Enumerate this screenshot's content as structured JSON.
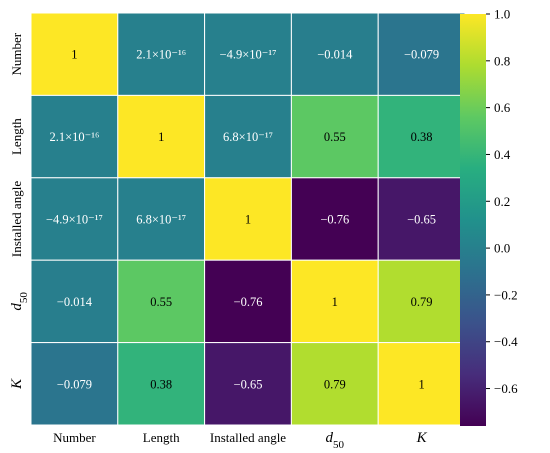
{
  "chart_data": {
    "type": "heatmap",
    "row_labels": [
      "Number",
      "Length",
      "Installed angle",
      "d50",
      "K"
    ],
    "col_labels": [
      "Number",
      "Length",
      "Installed angle",
      "d50",
      "K"
    ],
    "values": [
      [
        1,
        2.1e-16,
        -4.9e-17,
        -0.014,
        -0.079
      ],
      [
        2.1e-16,
        1,
        6.8e-17,
        0.55,
        0.38
      ],
      [
        -4.9e-17,
        6.8e-17,
        1,
        -0.76,
        -0.65
      ],
      [
        -0.014,
        0.55,
        -0.76,
        1,
        0.79
      ],
      [
        -0.079,
        0.38,
        -0.65,
        0.79,
        1
      ]
    ],
    "annotations": [
      [
        "1",
        "2.1×10⁻¹⁶",
        "−4.9×10⁻¹⁷",
        "−0.014",
        "−0.079"
      ],
      [
        "2.1×10⁻¹⁶",
        "1",
        "6.8×10⁻¹⁷",
        "0.55",
        "0.38"
      ],
      [
        "−4.9×10⁻¹⁷",
        "6.8×10⁻¹⁷",
        "1",
        "−0.76",
        "−0.65"
      ],
      [
        "−0.014",
        "0.55",
        "−0.76",
        "1",
        "0.79"
      ],
      [
        "−0.079",
        "0.38",
        "−0.65",
        "0.79",
        "1"
      ]
    ],
    "colorbar": {
      "colormap": "viridis",
      "range": [
        -0.76,
        1.0
      ],
      "ticks": [
        1.0,
        0.8,
        0.6,
        0.4,
        0.2,
        0.0,
        -0.2,
        -0.4,
        -0.6
      ],
      "tick_labels": [
        "1.0",
        "0.8",
        "0.6",
        "0.4",
        "0.2",
        "0.0",
        "−0.2",
        "−0.4",
        "−0.6"
      ]
    },
    "title": "",
    "xlabel": "",
    "ylabel": ""
  }
}
